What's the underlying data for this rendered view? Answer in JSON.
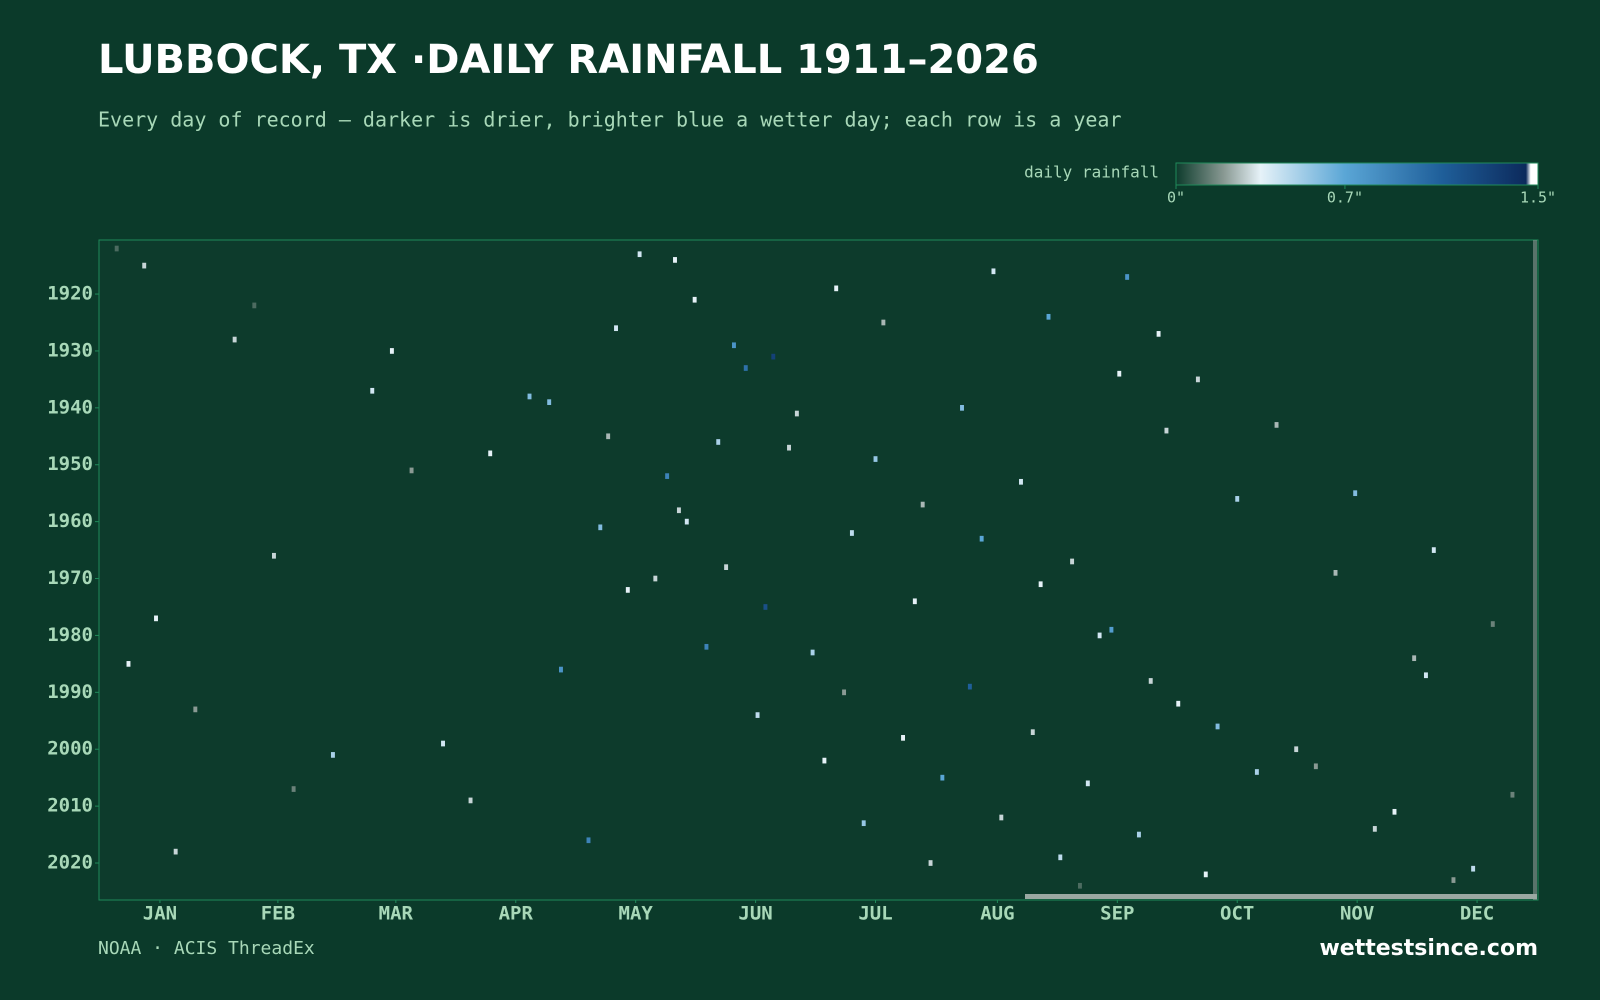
{
  "chart_data": {
    "type": "heatmap",
    "title": "LUBBOCK, TX ·DAILY RAINFALL 1911–2026",
    "subtitle": "Every day of record — darker is drier, brighter blue a wetter day; each row is a year",
    "colorbar_label": "daily rainfall",
    "colorbar_ticks": [
      {
        "value": 0,
        "label": "0\""
      },
      {
        "value": 0.7,
        "label": "0.7\""
      },
      {
        "value": 1.5,
        "label": "1.5\""
      }
    ],
    "color_stops": [
      {
        "value": 0,
        "color": "#0d3b2c"
      },
      {
        "value": 0.2,
        "color": "#8a9a94"
      },
      {
        "value": 0.35,
        "color": "#e6f2f8"
      },
      {
        "value": 0.7,
        "color": "#5aa6d6"
      },
      {
        "value": 1.1,
        "color": "#1f5f9a"
      },
      {
        "value": 1.45,
        "color": "#0c2a5c"
      },
      {
        "value": 1.47,
        "color": "#ffffff"
      },
      {
        "value": 1.5,
        "color": "#ffffff"
      }
    ],
    "xlim": [
      1,
      366
    ],
    "ylim": [
      1911,
      2026
    ],
    "xticks": [
      {
        "value": 16,
        "label": "JAN"
      },
      {
        "value": 46,
        "label": "FEB"
      },
      {
        "value": 76,
        "label": "MAR"
      },
      {
        "value": 106.5,
        "label": "APR"
      },
      {
        "value": 137,
        "label": "MAY"
      },
      {
        "value": 167.5,
        "label": "JUN"
      },
      {
        "value": 198,
        "label": "JUL"
      },
      {
        "value": 229,
        "label": "AUG"
      },
      {
        "value": 259.5,
        "label": "SEP"
      },
      {
        "value": 290,
        "label": "OCT"
      },
      {
        "value": 320.5,
        "label": "NOV"
      },
      {
        "value": 351,
        "label": "DEC"
      }
    ],
    "yticks": [
      1920,
      1930,
      1940,
      1950,
      1960,
      1970,
      1980,
      1990,
      2000,
      2010,
      2020
    ],
    "cells": {
      "day": [
        12,
        40,
        75,
        110,
        130,
        145,
        150,
        160,
        170,
        182,
        190,
        205,
        215,
        230,
        245,
        250,
        262,
        270,
        280,
        300,
        320,
        340,
        355,
        8,
        25,
        60,
        95,
        125,
        138,
        152,
        165,
        178,
        198,
        210,
        225,
        240,
        255,
        268,
        285,
        310,
        330,
        350,
        20,
        50,
        88,
        118,
        135,
        148,
        158,
        172,
        188,
        200,
        220,
        235,
        248,
        258,
        275,
        295,
        325,
        345,
        5,
        35,
        70,
        100,
        128,
        142,
        155,
        168,
        185,
        195,
        212,
        228,
        242,
        260,
        272,
        290,
        315,
        338,
        360,
        15,
        45,
        80,
        115,
        132,
        147,
        162,
        176,
        192,
        208,
        222,
        238,
        252,
        265,
        282,
        305,
        335
      ],
      "year": [
        1915,
        1922,
        1930,
        1938,
        1945,
        1952,
        1960,
        1968,
        1975,
        1983,
        1990,
        1998,
        2005,
        2012,
        2019,
        2024,
        1917,
        1927,
        1935,
        1943,
        1955,
        1965,
        1978,
        1985,
        1993,
        2001,
        2009,
        2016,
        1913,
        1921,
        1933,
        1941,
        1949,
        1957,
        1963,
        1971,
        1980,
        1988,
        1996,
        2003,
        2011,
        2021,
        2018,
        2007,
        1999,
        1986,
        1972,
        1958,
        1946,
        1931,
        1919,
        1925,
        1940,
        1953,
        1967,
        1979,
        1992,
        2004,
        2014,
        2023,
        1912,
        1928,
        1937,
        1948,
        1961,
        1970,
        1982,
        1994,
        2002,
        2013,
        2020,
        1916,
        1924,
        1934,
        1944,
        1956,
        1969,
        1987,
        2008,
        1977,
        1966,
        1951,
        1939,
        1926,
        1914,
        1929,
        1947,
        1962,
        1974,
        1989,
        1997,
        2006,
        2015,
        2022,
        2000,
        1984
      ],
      "values": [
        0.3,
        0.1,
        0.35,
        0.6,
        0.25,
        0.9,
        0.4,
        0.3,
        1.2,
        0.5,
        0.2,
        0.35,
        0.7,
        0.3,
        0.45,
        0.1,
        0.8,
        0.35,
        0.3,
        0.25,
        0.6,
        0.4,
        0.15,
        0.35,
        0.2,
        0.5,
        0.3,
        0.9,
        0.4,
        0.35,
        1.0,
        0.3,
        0.55,
        0.25,
        0.7,
        0.35,
        0.4,
        0.3,
        0.6,
        0.2,
        0.35,
        0.45,
        0.3,
        0.15,
        0.4,
        0.8,
        0.35,
        0.3,
        0.5,
        1.3,
        0.35,
        0.25,
        0.6,
        0.4,
        0.3,
        0.75,
        0.35,
        0.5,
        0.3,
        0.2,
        0.1,
        0.3,
        0.4,
        0.35,
        0.6,
        0.3,
        0.9,
        0.45,
        0.35,
        0.55,
        0.3,
        0.4,
        0.7,
        0.35,
        0.3,
        0.5,
        0.25,
        0.4,
        0.15,
        0.35,
        0.3,
        0.2,
        0.6,
        0.4,
        0.35,
        0.8,
        0.3,
        0.45,
        0.35,
        1.1,
        0.3,
        0.4,
        0.5,
        0.35,
        0.3,
        0.25
      ]
    },
    "source": "NOAA · ACIS ThreadEx",
    "brand": "wettestsince.com"
  }
}
